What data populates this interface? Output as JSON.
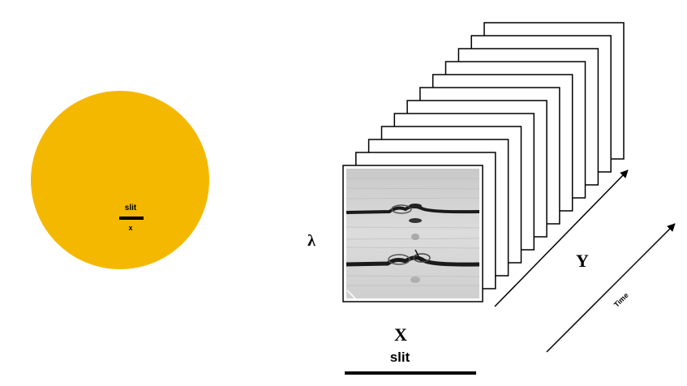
{
  "sun": {
    "color": "#f5b800",
    "slit_label": "slit",
    "x_label": "x"
  },
  "cube": {
    "frame_count": 12,
    "lambda_label": "λ",
    "x_axis_label": "X",
    "slit_label": "slit",
    "y_axis_label": "Y",
    "time_label": "Time"
  }
}
